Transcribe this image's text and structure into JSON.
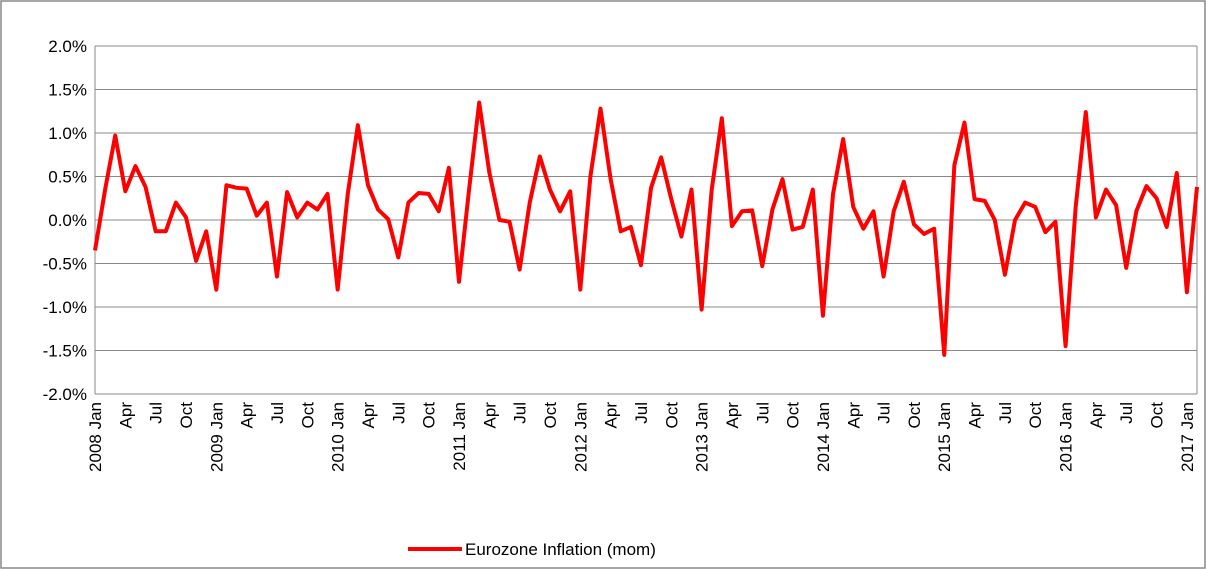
{
  "chart_data": {
    "type": "line",
    "categories": [
      "2008 Jan",
      null,
      null,
      "Apr",
      null,
      null,
      "Jul",
      null,
      null,
      "Oct",
      null,
      null,
      "2009 Jan",
      null,
      null,
      "Apr",
      null,
      null,
      "Jul",
      null,
      null,
      "Oct",
      null,
      null,
      "2010 Jan",
      null,
      null,
      "Apr",
      null,
      null,
      "Jul",
      null,
      null,
      "Oct",
      null,
      null,
      "2011 Jan",
      null,
      null,
      "Apr",
      null,
      null,
      "Jul",
      null,
      null,
      "Oct",
      null,
      null,
      "2012 Jan",
      null,
      null,
      "Apr",
      null,
      null,
      "Jul",
      null,
      null,
      "Oct",
      null,
      null,
      "2013 Jan",
      null,
      null,
      "Apr",
      null,
      null,
      "Jul",
      null,
      null,
      "Oct",
      null,
      null,
      "2014 Jan",
      null,
      null,
      "Apr",
      null,
      null,
      "Jul",
      null,
      null,
      "Oct",
      null,
      null,
      "2015 Jan",
      null,
      null,
      "Apr",
      null,
      null,
      "Jul",
      null,
      null,
      "Oct",
      null,
      null,
      "2016 Jan",
      null,
      null,
      "Apr",
      null,
      null,
      "Jul",
      null,
      null,
      "Oct",
      null,
      null,
      "2017 Jan",
      null
    ],
    "series": [
      {
        "name": "Eurozone Inflation (mom)",
        "color": "#ff0000",
        "values": [
          -0.35,
          0.35,
          0.97,
          0.33,
          0.62,
          0.38,
          -0.13,
          -0.13,
          0.2,
          0.03,
          -0.47,
          -0.13,
          -0.8,
          0.4,
          0.37,
          0.36,
          0.05,
          0.2,
          -0.65,
          0.32,
          0.03,
          0.2,
          0.12,
          0.3,
          -0.8,
          0.3,
          1.09,
          0.4,
          0.12,
          0.01,
          -0.43,
          0.2,
          0.31,
          0.3,
          0.1,
          0.6,
          -0.71,
          0.35,
          1.35,
          0.55,
          0.0,
          -0.02,
          -0.57,
          0.2,
          0.73,
          0.35,
          0.1,
          0.33,
          -0.8,
          0.5,
          1.28,
          0.47,
          -0.13,
          -0.08,
          -0.52,
          0.37,
          0.72,
          0.24,
          -0.19,
          0.35,
          -1.03,
          0.35,
          1.17,
          -0.07,
          0.1,
          0.11,
          -0.53,
          0.12,
          0.47,
          -0.11,
          -0.08,
          0.35,
          -1.1,
          0.3,
          0.93,
          0.15,
          -0.1,
          0.1,
          -0.65,
          0.1,
          0.44,
          -0.05,
          -0.16,
          -0.1,
          -1.55,
          0.63,
          1.12,
          0.24,
          0.22,
          0.0,
          -0.63,
          0.0,
          0.2,
          0.15,
          -0.14,
          -0.02,
          -1.45,
          0.15,
          1.24,
          0.03,
          0.35,
          0.17,
          -0.55,
          0.1,
          0.39,
          0.25,
          -0.08,
          0.54,
          -0.83,
          0.38
        ]
      }
    ],
    "ylim": [
      -2.0,
      2.0
    ],
    "yticks": [
      {
        "value": -2.0,
        "label": "-2.0%"
      },
      {
        "value": -1.5,
        "label": "-1.5%"
      },
      {
        "value": -1.0,
        "label": "-1.0%"
      },
      {
        "value": -0.5,
        "label": "-0.5%"
      },
      {
        "value": 0.0,
        "label": "0.0%"
      },
      {
        "value": 0.5,
        "label": "0.5%"
      },
      {
        "value": 1.0,
        "label": "1.0%"
      },
      {
        "value": 1.5,
        "label": "1.5%"
      },
      {
        "value": 2.0,
        "label": "2.0%"
      }
    ],
    "grid": true,
    "legend": "bottom"
  }
}
